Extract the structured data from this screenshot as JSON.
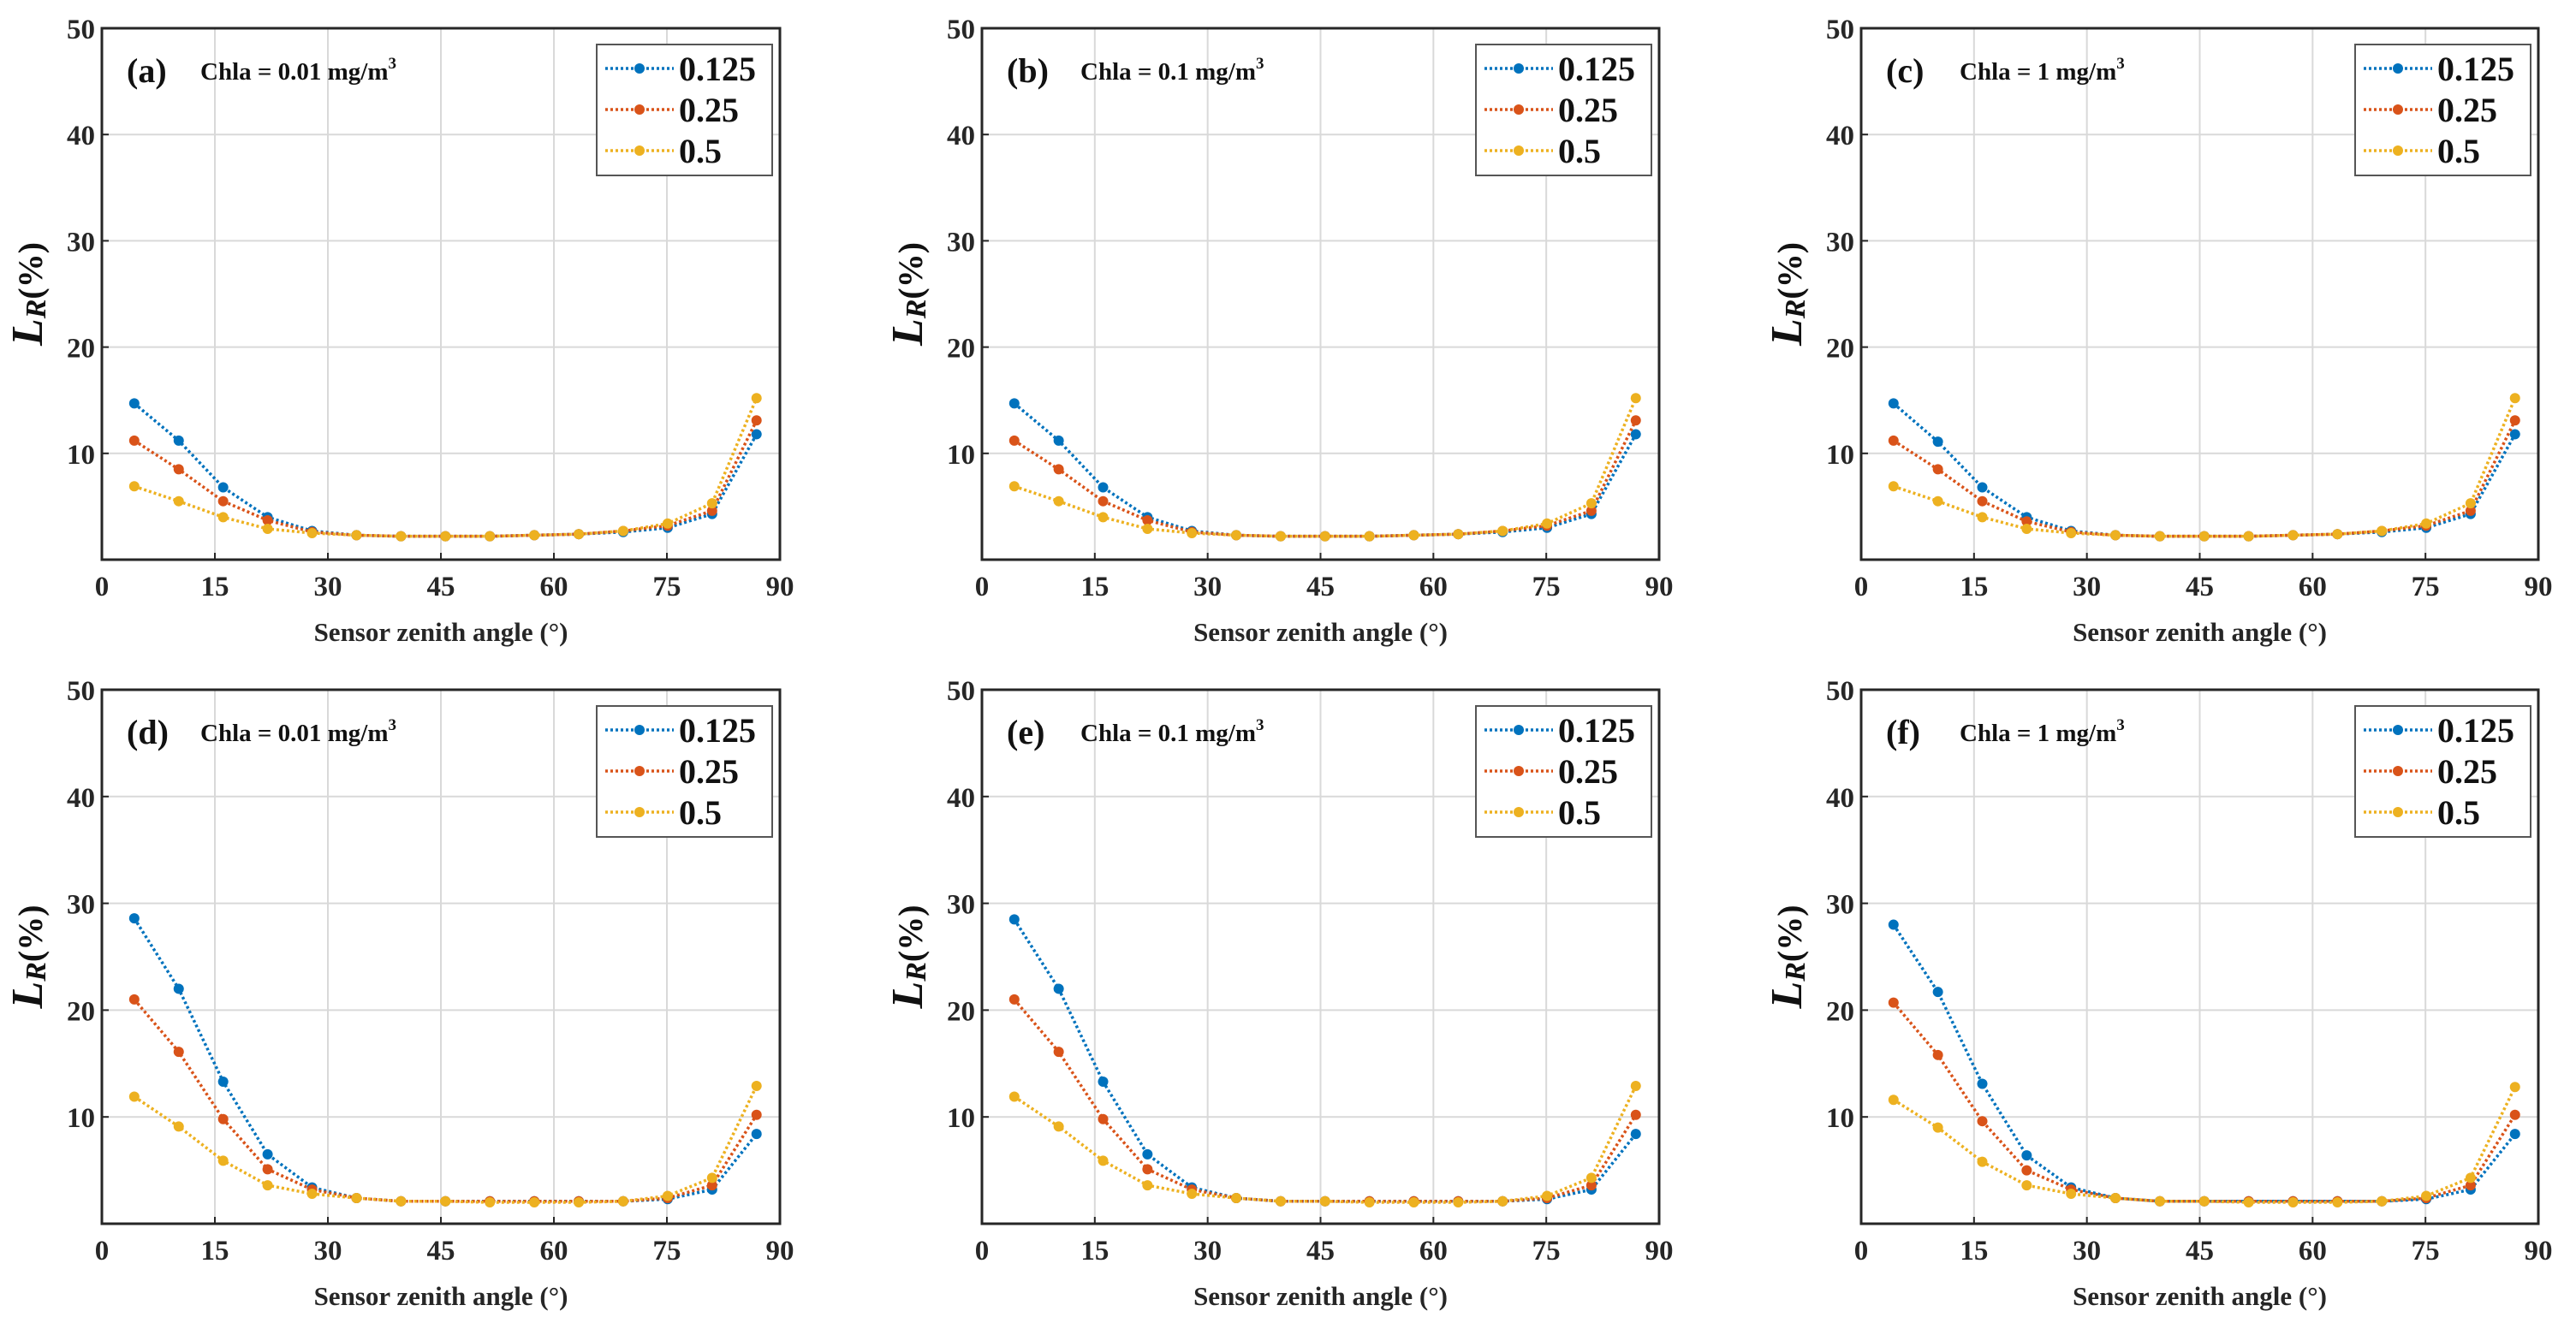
{
  "colors": {
    "0.125": "#0072BD",
    "0.25": "#D95319",
    "0.5": "#EDB120"
  },
  "chart_data": [
    {
      "type": "line",
      "panel": "(a)",
      "annotation": "Chla = 0.01 mg/m",
      "annotation_sup": "3",
      "xlabel": "Sensor zenith angle (°)",
      "ylabel": "L",
      "ylabel_sub": "R",
      "ylabel_suffix": "(%)",
      "xlim": [
        0,
        90
      ],
      "ylim": [
        0,
        50
      ],
      "xticks": [
        "0",
        "15",
        "30",
        "45",
        "60",
        "75",
        "90"
      ],
      "yticks": [
        "10",
        "20",
        "30",
        "40",
        "50"
      ],
      "grid": true,
      "legend": "top-right",
      "x": [
        4.3,
        10.2,
        16.1,
        22.0,
        27.9,
        33.8,
        39.7,
        45.6,
        51.5,
        57.4,
        63.3,
        69.2,
        75.1,
        81.0,
        86.9
      ],
      "series": [
        {
          "name": "0.125",
          "values": [
            14.7,
            11.2,
            6.8,
            4.0,
            2.7,
            2.3,
            2.2,
            2.2,
            2.2,
            2.3,
            2.4,
            2.6,
            3.0,
            4.3,
            11.8
          ]
        },
        {
          "name": "0.25",
          "values": [
            11.2,
            8.5,
            5.5,
            3.7,
            2.6,
            2.3,
            2.2,
            2.2,
            2.2,
            2.3,
            2.4,
            2.7,
            3.2,
            4.6,
            13.1
          ]
        },
        {
          "name": "0.5",
          "values": [
            6.9,
            5.5,
            4.0,
            2.9,
            2.5,
            2.3,
            2.2,
            2.2,
            2.2,
            2.3,
            2.4,
            2.7,
            3.4,
            5.3,
            15.2
          ]
        }
      ]
    },
    {
      "type": "line",
      "panel": "(b)",
      "annotation": "Chla = 0.1 mg/m",
      "annotation_sup": "3",
      "xlabel": "Sensor zenith angle (°)",
      "ylabel": "L",
      "ylabel_sub": "R",
      "ylabel_suffix": "(%)",
      "xlim": [
        0,
        90
      ],
      "ylim": [
        0,
        50
      ],
      "xticks": [
        "0",
        "15",
        "30",
        "45",
        "60",
        "75",
        "90"
      ],
      "yticks": [
        "10",
        "20",
        "30",
        "40",
        "50"
      ],
      "grid": true,
      "legend": "top-right",
      "x": [
        4.3,
        10.2,
        16.1,
        22.0,
        27.9,
        33.8,
        39.7,
        45.6,
        51.5,
        57.4,
        63.3,
        69.2,
        75.1,
        81.0,
        86.9
      ],
      "series": [
        {
          "name": "0.125",
          "values": [
            14.7,
            11.2,
            6.8,
            4.0,
            2.7,
            2.3,
            2.2,
            2.2,
            2.2,
            2.3,
            2.4,
            2.6,
            3.0,
            4.3,
            11.8
          ]
        },
        {
          "name": "0.25",
          "values": [
            11.2,
            8.5,
            5.5,
            3.7,
            2.6,
            2.3,
            2.2,
            2.2,
            2.2,
            2.3,
            2.4,
            2.7,
            3.2,
            4.6,
            13.1
          ]
        },
        {
          "name": "0.5",
          "values": [
            6.9,
            5.5,
            4.0,
            2.9,
            2.5,
            2.3,
            2.2,
            2.2,
            2.2,
            2.3,
            2.4,
            2.7,
            3.4,
            5.3,
            15.2
          ]
        }
      ]
    },
    {
      "type": "line",
      "panel": "(c)",
      "annotation": "Chla = 1 mg/m",
      "annotation_sup": "3",
      "xlabel": "Sensor zenith angle (°)",
      "ylabel": "L",
      "ylabel_sub": "R",
      "ylabel_suffix": "(%)",
      "xlim": [
        0,
        90
      ],
      "ylim": [
        0,
        50
      ],
      "xticks": [
        "0",
        "15",
        "30",
        "45",
        "60",
        "75",
        "90"
      ],
      "yticks": [
        "10",
        "20",
        "30",
        "40",
        "50"
      ],
      "grid": true,
      "legend": "top-right",
      "x": [
        4.3,
        10.2,
        16.1,
        22.0,
        27.9,
        33.8,
        39.7,
        45.6,
        51.5,
        57.4,
        63.3,
        69.2,
        75.1,
        81.0,
        86.9
      ],
      "series": [
        {
          "name": "0.125",
          "values": [
            14.7,
            11.1,
            6.8,
            4.0,
            2.7,
            2.3,
            2.2,
            2.2,
            2.2,
            2.3,
            2.4,
            2.6,
            3.0,
            4.3,
            11.8
          ]
        },
        {
          "name": "0.25",
          "values": [
            11.2,
            8.5,
            5.5,
            3.6,
            2.6,
            2.3,
            2.2,
            2.2,
            2.2,
            2.3,
            2.4,
            2.7,
            3.2,
            4.6,
            13.1
          ]
        },
        {
          "name": "0.5",
          "values": [
            6.9,
            5.5,
            4.0,
            2.9,
            2.5,
            2.3,
            2.2,
            2.2,
            2.2,
            2.3,
            2.4,
            2.7,
            3.4,
            5.3,
            15.2
          ]
        }
      ]
    },
    {
      "type": "line",
      "panel": "(d)",
      "annotation": "Chla = 0.01 mg/m",
      "annotation_sup": "3",
      "xlabel": "Sensor zenith angle (°)",
      "ylabel": "L",
      "ylabel_sub": "R",
      "ylabel_suffix": "(%)",
      "xlim": [
        0,
        90
      ],
      "ylim": [
        0,
        50
      ],
      "xticks": [
        "0",
        "15",
        "30",
        "45",
        "60",
        "75",
        "90"
      ],
      "yticks": [
        "10",
        "20",
        "30",
        "40",
        "50"
      ],
      "grid": true,
      "legend": "top-right",
      "x": [
        4.3,
        10.2,
        16.1,
        22.0,
        27.9,
        33.8,
        39.7,
        45.6,
        51.5,
        57.4,
        63.3,
        69.2,
        75.1,
        81.0,
        86.9
      ],
      "series": [
        {
          "name": "0.125",
          "values": [
            28.6,
            22.0,
            13.3,
            6.5,
            3.4,
            2.4,
            2.1,
            2.1,
            2.1,
            2.1,
            2.1,
            2.1,
            2.3,
            3.2,
            8.4
          ]
        },
        {
          "name": "0.25",
          "values": [
            21.0,
            16.1,
            9.8,
            5.1,
            3.2,
            2.4,
            2.1,
            2.1,
            2.1,
            2.1,
            2.1,
            2.1,
            2.4,
            3.6,
            10.2
          ]
        },
        {
          "name": "0.5",
          "values": [
            11.9,
            9.1,
            5.9,
            3.6,
            2.8,
            2.4,
            2.1,
            2.1,
            2.0,
            2.0,
            2.0,
            2.1,
            2.6,
            4.3,
            12.9
          ]
        }
      ]
    },
    {
      "type": "line",
      "panel": "(e)",
      "annotation": "Chla = 0.1 mg/m",
      "annotation_sup": "3",
      "xlabel": "Sensor zenith angle (°)",
      "ylabel": "L",
      "ylabel_sub": "R",
      "ylabel_suffix": "(%)",
      "xlim": [
        0,
        90
      ],
      "ylim": [
        0,
        50
      ],
      "xticks": [
        "0",
        "15",
        "30",
        "45",
        "60",
        "75",
        "90"
      ],
      "yticks": [
        "10",
        "20",
        "30",
        "40",
        "50"
      ],
      "grid": true,
      "legend": "top-right",
      "x": [
        4.3,
        10.2,
        16.1,
        22.0,
        27.9,
        33.8,
        39.7,
        45.6,
        51.5,
        57.4,
        63.3,
        69.2,
        75.1,
        81.0,
        86.9
      ],
      "series": [
        {
          "name": "0.125",
          "values": [
            28.5,
            22.0,
            13.3,
            6.5,
            3.4,
            2.4,
            2.1,
            2.1,
            2.1,
            2.1,
            2.1,
            2.1,
            2.3,
            3.2,
            8.4
          ]
        },
        {
          "name": "0.25",
          "values": [
            21.0,
            16.1,
            9.8,
            5.1,
            3.2,
            2.4,
            2.1,
            2.1,
            2.1,
            2.1,
            2.1,
            2.1,
            2.4,
            3.6,
            10.2
          ]
        },
        {
          "name": "0.5",
          "values": [
            11.9,
            9.1,
            5.9,
            3.6,
            2.8,
            2.4,
            2.1,
            2.1,
            2.0,
            2.0,
            2.0,
            2.1,
            2.6,
            4.3,
            12.9
          ]
        }
      ]
    },
    {
      "type": "line",
      "panel": "(f)",
      "annotation": "Chla = 1 mg/m",
      "annotation_sup": "3",
      "xlabel": "Sensor zenith angle (°)",
      "ylabel": "L",
      "ylabel_sub": "R",
      "ylabel_suffix": "(%)",
      "xlim": [
        0,
        90
      ],
      "ylim": [
        0,
        50
      ],
      "xticks": [
        "0",
        "15",
        "30",
        "45",
        "60",
        "75",
        "90"
      ],
      "yticks": [
        "10",
        "20",
        "30",
        "40",
        "50"
      ],
      "grid": true,
      "legend": "top-right",
      "x": [
        4.3,
        10.2,
        16.1,
        22.0,
        27.9,
        33.8,
        39.7,
        45.6,
        51.5,
        57.4,
        63.3,
        69.2,
        75.1,
        81.0,
        86.9
      ],
      "series": [
        {
          "name": "0.125",
          "values": [
            28.0,
            21.7,
            13.1,
            6.4,
            3.4,
            2.4,
            2.1,
            2.1,
            2.1,
            2.1,
            2.1,
            2.1,
            2.3,
            3.2,
            8.4
          ]
        },
        {
          "name": "0.25",
          "values": [
            20.7,
            15.8,
            9.6,
            5.0,
            3.2,
            2.4,
            2.1,
            2.1,
            2.1,
            2.1,
            2.1,
            2.1,
            2.4,
            3.6,
            10.2
          ]
        },
        {
          "name": "0.5",
          "values": [
            11.6,
            9.0,
            5.8,
            3.6,
            2.8,
            2.4,
            2.1,
            2.1,
            2.0,
            2.0,
            2.0,
            2.1,
            2.6,
            4.3,
            12.8
          ]
        }
      ]
    }
  ]
}
